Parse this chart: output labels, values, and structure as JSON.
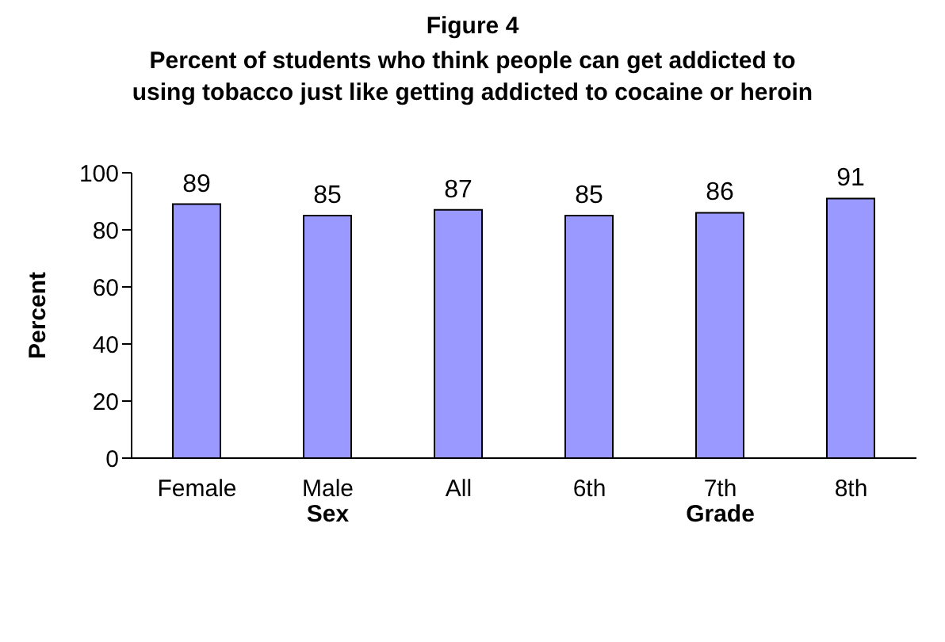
{
  "chart_data": {
    "type": "bar",
    "title": "Figure 4",
    "subtitle": "Percent of students who think people can get addicted to using tobacco just like getting addicted to cocaine or heroin",
    "ylabel": "Percent",
    "categories": [
      "Female",
      "Male",
      "All",
      "6th",
      "7th",
      "8th"
    ],
    "values": [
      89,
      85,
      87,
      85,
      86,
      91
    ],
    "color": "#9999ff",
    "ylim": [
      0,
      100
    ],
    "yticks": [
      0,
      20,
      40,
      60,
      80,
      100
    ],
    "grid": false,
    "data_labels": true,
    "annotations": [
      "Sex",
      "Grade"
    ]
  }
}
